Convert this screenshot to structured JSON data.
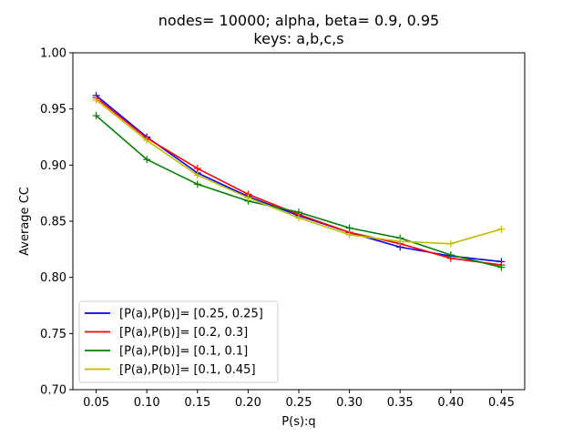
{
  "chart_data": {
    "type": "line",
    "title_line1": "nodes= 10000; alpha, beta= 0.9, 0.95",
    "title_line2": "keys: a,b,c,s",
    "xlabel": "P(s):q",
    "ylabel": "Average CC",
    "x": [
      0.05,
      0.1,
      0.15,
      0.2,
      0.25,
      0.3,
      0.35,
      0.4,
      0.45
    ],
    "x_tick_labels": [
      "0.05",
      "0.10",
      "0.15",
      "0.20",
      "0.25",
      "0.30",
      "0.35",
      "0.40",
      "0.45"
    ],
    "xlim": [
      0.027,
      0.473
    ],
    "y_ticks": [
      0.7,
      0.75,
      0.8,
      0.85,
      0.9,
      0.95,
      1.0
    ],
    "y_tick_labels": [
      "0.70",
      "0.75",
      "0.80",
      "0.85",
      "0.90",
      "0.95",
      "1.00"
    ],
    "ylim": [
      0.7,
      1.0
    ],
    "grid": false,
    "legend_position": "lower-left",
    "marker": "+",
    "series": [
      {
        "name": "[P(a),P(b)]= [0.25, 0.25]",
        "color": "#0000ff",
        "values": [
          0.962,
          0.925,
          0.893,
          0.872,
          0.855,
          0.84,
          0.827,
          0.819,
          0.814
        ]
      },
      {
        "name": "[P(a),P(b)]= [0.2, 0.3]",
        "color": "#ff0000",
        "values": [
          0.96,
          0.924,
          0.897,
          0.874,
          0.856,
          0.84,
          0.83,
          0.817,
          0.811
        ]
      },
      {
        "name": "[P(a),P(b)]= [0.1, 0.1]",
        "color": "#008000",
        "values": [
          0.944,
          0.905,
          0.883,
          0.868,
          0.858,
          0.844,
          0.835,
          0.82,
          0.809
        ]
      },
      {
        "name": "[P(a),P(b)]= [0.1, 0.45]",
        "color": "#bfbf00",
        "values": [
          0.958,
          0.922,
          0.891,
          0.871,
          0.853,
          0.838,
          0.832,
          0.83,
          0.843
        ]
      }
    ]
  }
}
